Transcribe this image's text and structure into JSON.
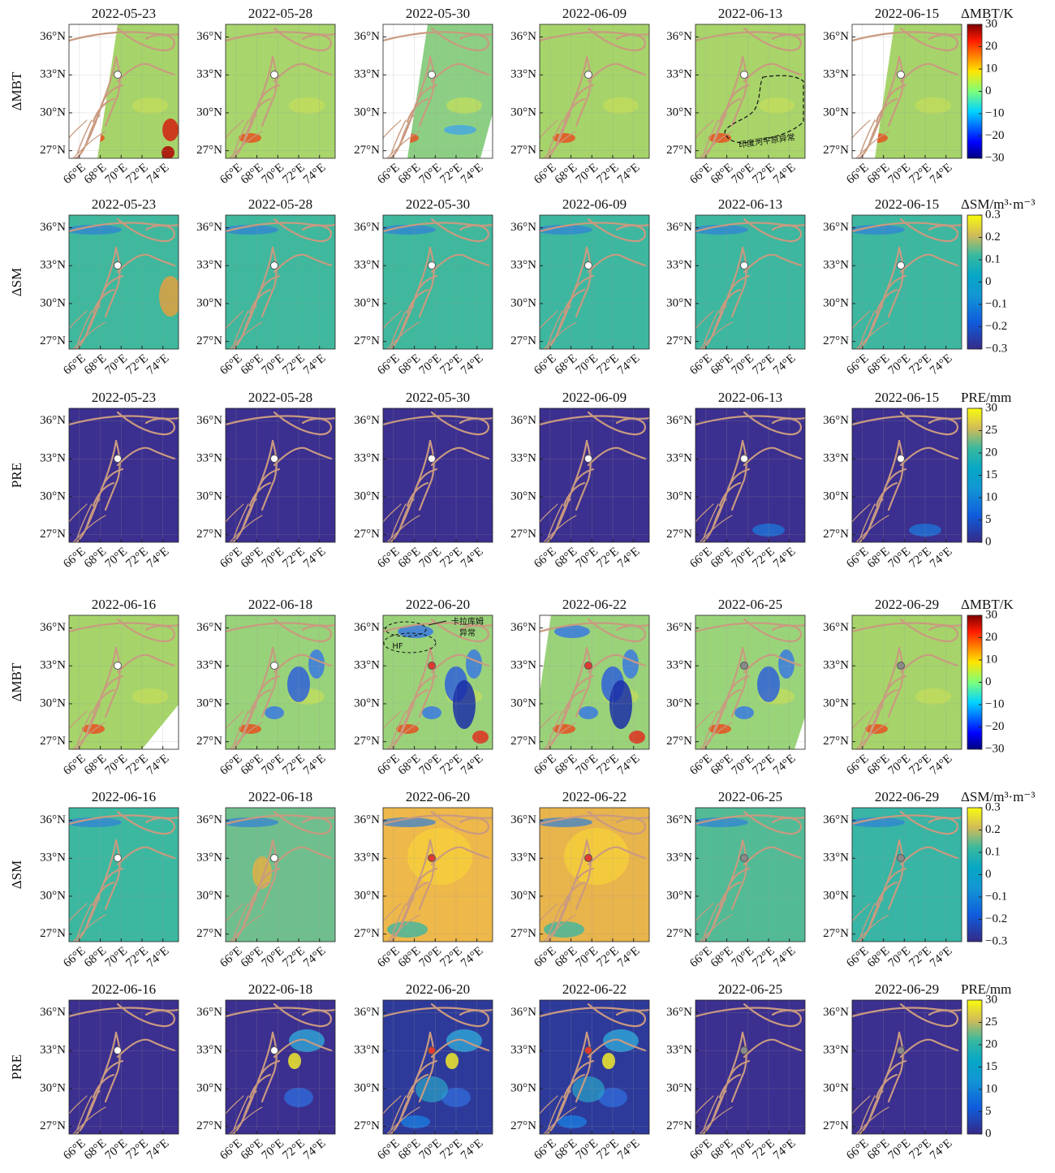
{
  "figure": {
    "row_labels": [
      "ΔMBT",
      "ΔSM",
      "PRE"
    ],
    "colorbars": [
      {
        "title": "ΔMBT/K",
        "colormap": "jet",
        "lim": [
          -30,
          30
        ],
        "ticks": [
          {
            "value": -30,
            "label": "−30"
          },
          {
            "value": -20,
            "label": "−20"
          },
          {
            "value": -10,
            "label": "−10"
          },
          0,
          10,
          20,
          30
        ]
      },
      {
        "title": "ΔSM/m³·m⁻³",
        "colormap": "parula",
        "lim": [
          -0.3,
          0.3
        ],
        "ticks": [
          {
            "value": -0.3,
            "label": "−0.3"
          },
          {
            "value": -0.2,
            "label": "−0.2"
          },
          {
            "value": -0.1,
            "label": "−0.1"
          },
          0,
          0.1,
          0.2,
          0.3
        ]
      },
      {
        "title": "PRE/mm",
        "colormap": "parula",
        "lim": [
          0,
          30
        ],
        "ticks": [
          0,
          5,
          10,
          15,
          20,
          25,
          30
        ]
      }
    ],
    "blocks": [
      {
        "dates": [
          "2022-05-23",
          "2022-05-28",
          "2022-05-30",
          "2022-06-09",
          "2022-06-13",
          "2022-06-15"
        ],
        "marker_colors": [
          "#ffffff",
          "#ffffff",
          "#ffffff",
          "#ffffff",
          "#ffffff",
          "#ffffff"
        ]
      },
      {
        "dates": [
          "2022-06-16",
          "2022-06-18",
          "2022-06-20",
          "2022-06-22",
          "2022-06-25",
          "2022-06-29"
        ],
        "marker_colors": [
          "#ffffff",
          "#ffffff",
          "#e03a30",
          "#e03a30",
          "#8a8a8a",
          "#8a8a8a"
        ]
      }
    ],
    "xlim": [
      65,
      75.5
    ],
    "ylim": [
      26.4,
      37
    ],
    "xticks": [
      {
        "value": 66,
        "label": "66°E"
      },
      {
        "value": 68,
        "label": "68°E"
      },
      {
        "value": 70,
        "label": "70°E"
      },
      {
        "value": 72,
        "label": "72°E"
      },
      {
        "value": 74,
        "label": "74°E"
      }
    ],
    "yticks": [
      {
        "value": 27,
        "label": "27°N"
      },
      {
        "value": 30,
        "label": "30°N"
      },
      {
        "value": 33,
        "label": "33°N"
      },
      {
        "value": 36,
        "label": "36°N"
      }
    ],
    "annotations": [
      "印度河平原异常",
      "卡拉库姆",
      "异常",
      "HF"
    ]
  }
}
